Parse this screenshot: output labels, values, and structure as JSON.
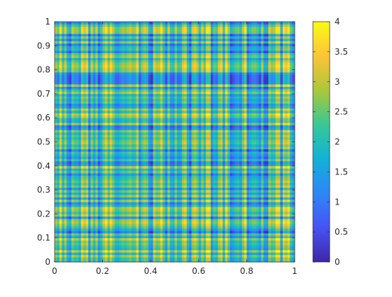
{
  "chart_data": {
    "type": "heatmap",
    "title": "",
    "xlabel": "",
    "ylabel": "",
    "xlim": [
      0,
      1
    ],
    "ylim": [
      0,
      1
    ],
    "x_ticks": [
      0,
      0.2,
      0.4,
      0.6,
      0.8,
      1
    ],
    "x_tick_labels": [
      "0",
      "0.2",
      "0.4",
      "0.6",
      "0.8",
      "1"
    ],
    "y_ticks": [
      0,
      0.1,
      0.2,
      0.3,
      0.4,
      0.5,
      0.6,
      0.7,
      0.8,
      0.9,
      1
    ],
    "y_tick_labels": [
      "0",
      "0.1",
      "0.2",
      "0.3",
      "0.4",
      "0.5",
      "0.6",
      "0.7",
      "0.8",
      "0.9",
      "1"
    ],
    "grid_resolution": [
      100,
      100
    ],
    "value_distribution": "sum of a per-row term and a per-column term, each uniform on [0, 2]",
    "value_range": [
      0,
      4
    ],
    "colormap": "parula",
    "colorbar": {
      "placement": "right",
      "limits": [
        0,
        4
      ],
      "ticks": [
        0,
        0.5,
        1,
        1.5,
        2,
        2.5,
        3,
        3.5,
        4
      ],
      "tick_labels": [
        "0",
        "0.5",
        "1",
        "1.5",
        "2",
        "2.5",
        "3",
        "3.5",
        "4"
      ]
    },
    "grid": false,
    "box": true
  }
}
